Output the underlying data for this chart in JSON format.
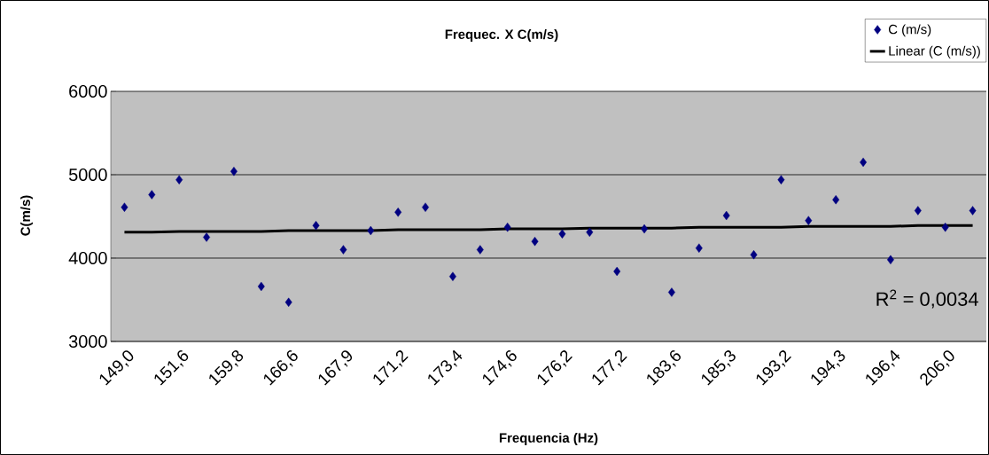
{
  "chart_data": {
    "type": "scatter",
    "title": "Frequec. X C(m/s)",
    "xlabel": "Frequencia (Hz)",
    "ylabel": "C(m/s)",
    "categories": [
      "149,0",
      null,
      "151,6",
      null,
      "159,8",
      null,
      "166,6",
      null,
      "167,9",
      null,
      "171,2",
      null,
      "173,4",
      null,
      "174,6",
      null,
      "176,2",
      null,
      "177,2",
      null,
      "183,6",
      null,
      "185,3",
      null,
      "193,2",
      null,
      "194,3",
      null,
      "196,4",
      null,
      "206,0",
      null
    ],
    "series": [
      {
        "name": "C (m/s)",
        "color": "#000080",
        "marker": "diamond",
        "values": [
          4610,
          4760,
          4940,
          4250,
          5040,
          3660,
          3470,
          4390,
          4100,
          4330,
          4550,
          4610,
          3780,
          4100,
          4370,
          4200,
          4290,
          4310,
          3840,
          4350,
          3590,
          4120,
          4510,
          4040,
          4940,
          4450,
          4700,
          5150,
          3980,
          4570,
          4370,
          4570
        ]
      },
      {
        "name": "Linear (C (m/s))",
        "type": "line",
        "color": "#000000",
        "values": [
          4310,
          4310,
          4320,
          4320,
          4320,
          4320,
          4330,
          4330,
          4330,
          4330,
          4340,
          4340,
          4340,
          4340,
          4350,
          4350,
          4350,
          4360,
          4360,
          4360,
          4360,
          4370,
          4370,
          4370,
          4370,
          4380,
          4380,
          4380,
          4380,
          4390,
          4390,
          4390
        ]
      }
    ],
    "ylim": [
      3000,
      6000
    ],
    "yticks": [
      3000,
      4000,
      5000,
      6000
    ],
    "grid": "y",
    "legend": "top right",
    "annotations": [
      "R$^{2}$ = 0,0034"
    ]
  }
}
